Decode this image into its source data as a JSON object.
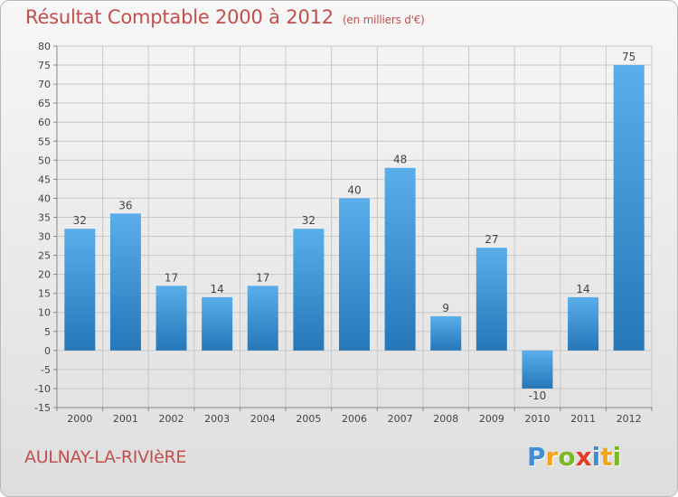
{
  "title": "Résultat Comptable 2000 à 2012",
  "unit_label": "(en milliers d'€)",
  "commune": "AULNAY-LA-RIVIèRE",
  "logo": {
    "letters": [
      "P",
      "r",
      "o",
      "x",
      "i",
      "t",
      "i"
    ],
    "colors": [
      "#3f8fd4",
      "#f2a51a",
      "#7ab829",
      "#e13d2a",
      "#3f8fd4",
      "#f2a51a",
      "#7ab829"
    ]
  },
  "colors": {
    "title": "#c0504d",
    "bar_light": "#5aaeea",
    "bar_dark": "#2577b8",
    "grid": "#c8c8c8"
  },
  "chart_data": {
    "type": "bar",
    "title": "Résultat Comptable 2000 à 2012",
    "xlabel": "",
    "ylabel": "(en milliers d'€)",
    "ylim": [
      -15,
      80
    ],
    "yticks": [
      -15,
      -10,
      -5,
      0,
      5,
      10,
      15,
      20,
      25,
      30,
      35,
      40,
      45,
      50,
      55,
      60,
      65,
      70,
      75,
      80
    ],
    "grid": true,
    "categories": [
      "2000",
      "2001",
      "2002",
      "2003",
      "2004",
      "2005",
      "2006",
      "2007",
      "2008",
      "2009",
      "2010",
      "2011",
      "2012"
    ],
    "values": [
      32,
      36,
      17,
      14,
      17,
      32,
      40,
      48,
      9,
      27,
      -10,
      14,
      75
    ]
  }
}
